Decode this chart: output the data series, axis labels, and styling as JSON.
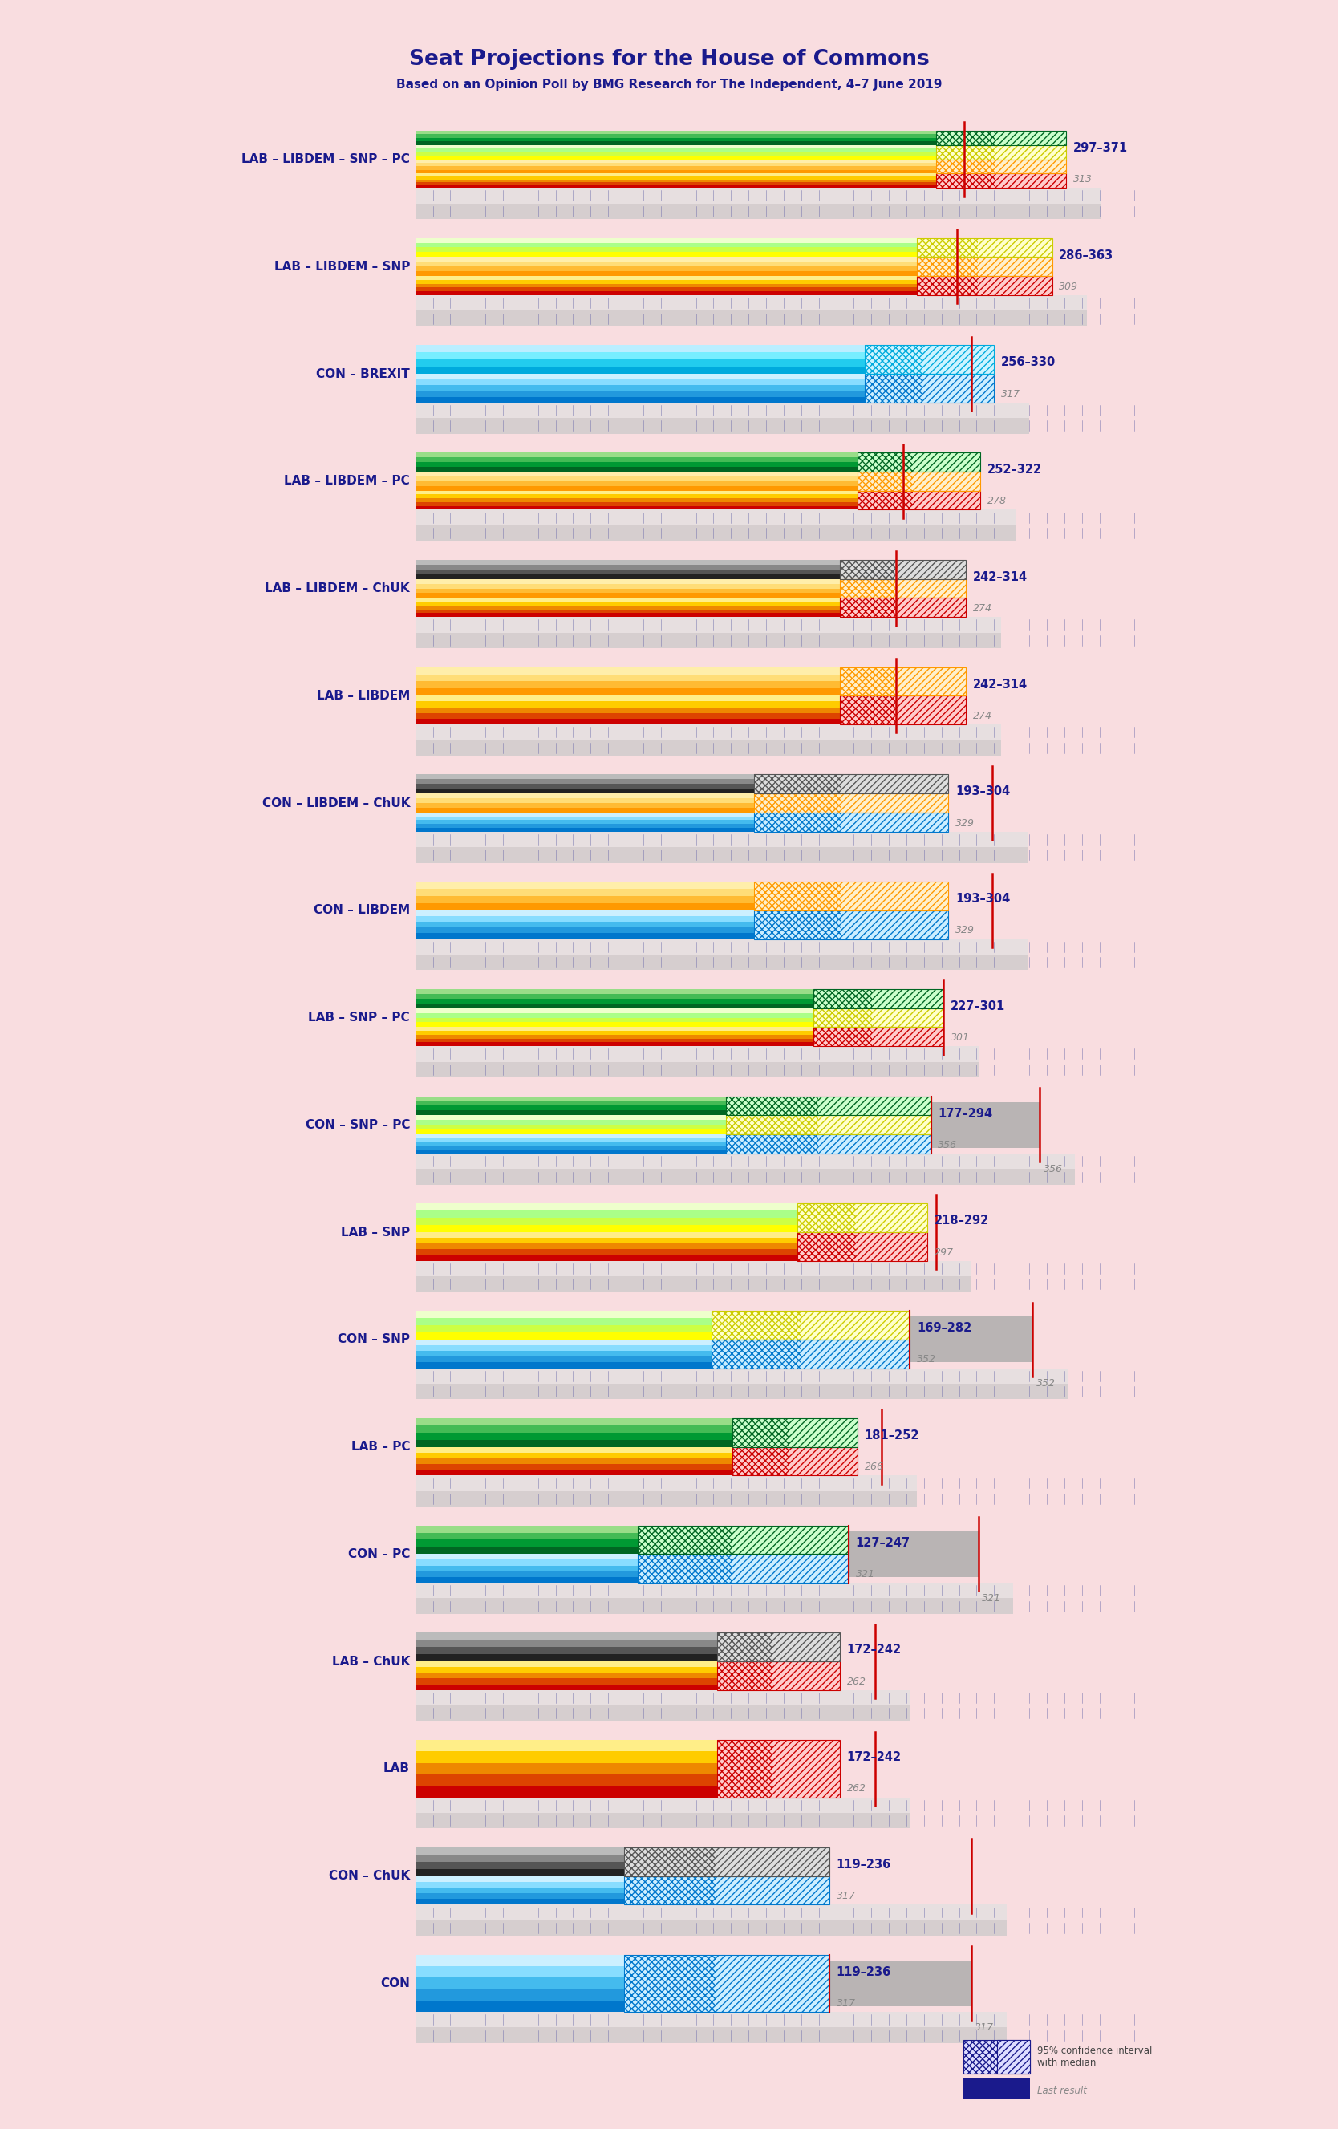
{
  "title": "Seat Projections for the House of Commons",
  "subtitle": "Based on an Opinion Poll by BMG Research for The Independent, 4–7 June 2019",
  "background_color": "#f9dde0",
  "title_color": "#1a1a8c",
  "subtitle_color": "#1a1a8c",
  "majority_line": 326,
  "xmin": 0,
  "xmax": 650,
  "coalitions": [
    {
      "name": "LAB – LIBDEM – SNP – PC",
      "ci_low": 297,
      "ci_high": 371,
      "median": 313,
      "last_result": null,
      "parties": [
        "LAB",
        "LIBDEM",
        "SNP",
        "PC"
      ]
    },
    {
      "name": "LAB – LIBDEM – SNP",
      "ci_low": 286,
      "ci_high": 363,
      "median": 309,
      "last_result": null,
      "parties": [
        "LAB",
        "LIBDEM",
        "SNP"
      ]
    },
    {
      "name": "CON – BREXIT",
      "ci_low": 256,
      "ci_high": 330,
      "median": 317,
      "last_result": null,
      "parties": [
        "CON",
        "BREXIT"
      ]
    },
    {
      "name": "LAB – LIBDEM – PC",
      "ci_low": 252,
      "ci_high": 322,
      "median": 278,
      "last_result": null,
      "parties": [
        "LAB",
        "LIBDEM",
        "PC"
      ]
    },
    {
      "name": "LAB – LIBDEM – ChUK",
      "ci_low": 242,
      "ci_high": 314,
      "median": 274,
      "last_result": null,
      "parties": [
        "LAB",
        "LIBDEM",
        "CHUK"
      ]
    },
    {
      "name": "LAB – LIBDEM",
      "ci_low": 242,
      "ci_high": 314,
      "median": 274,
      "last_result": null,
      "parties": [
        "LAB",
        "LIBDEM"
      ]
    },
    {
      "name": "CON – LIBDEM – ChUK",
      "ci_low": 193,
      "ci_high": 304,
      "median": 329,
      "last_result": null,
      "parties": [
        "CON",
        "LIBDEM",
        "CHUK"
      ]
    },
    {
      "name": "CON – LIBDEM",
      "ci_low": 193,
      "ci_high": 304,
      "median": 329,
      "last_result": null,
      "parties": [
        "CON",
        "LIBDEM"
      ]
    },
    {
      "name": "LAB – SNP – PC",
      "ci_low": 227,
      "ci_high": 301,
      "median": 301,
      "last_result": null,
      "parties": [
        "LAB",
        "SNP",
        "PC"
      ]
    },
    {
      "name": "CON – SNP – PC",
      "ci_low": 177,
      "ci_high": 294,
      "median": 356,
      "last_result": 356,
      "parties": [
        "CON",
        "SNP",
        "PC"
      ]
    },
    {
      "name": "LAB – SNP",
      "ci_low": 218,
      "ci_high": 292,
      "median": 297,
      "last_result": null,
      "parties": [
        "LAB",
        "SNP"
      ]
    },
    {
      "name": "CON – SNP",
      "ci_low": 169,
      "ci_high": 282,
      "median": 352,
      "last_result": 352,
      "parties": [
        "CON",
        "SNP"
      ]
    },
    {
      "name": "LAB – PC",
      "ci_low": 181,
      "ci_high": 252,
      "median": 266,
      "last_result": null,
      "parties": [
        "LAB",
        "PC"
      ]
    },
    {
      "name": "CON – PC",
      "ci_low": 127,
      "ci_high": 247,
      "median": 321,
      "last_result": 321,
      "parties": [
        "CON",
        "PC"
      ]
    },
    {
      "name": "LAB – ChUK",
      "ci_low": 172,
      "ci_high": 242,
      "median": 262,
      "last_result": null,
      "parties": [
        "LAB",
        "CHUK"
      ]
    },
    {
      "name": "LAB",
      "ci_low": 172,
      "ci_high": 242,
      "median": 262,
      "last_result": null,
      "parties": [
        "LAB"
      ]
    },
    {
      "name": "CON – ChUK",
      "ci_low": 119,
      "ci_high": 236,
      "median": 317,
      "last_result": null,
      "parties": [
        "CON",
        "CHUK"
      ]
    },
    {
      "name": "CON",
      "ci_low": 119,
      "ci_high": 236,
      "median": 317,
      "last_result": 317,
      "parties": [
        "CON"
      ]
    }
  ],
  "party_stripe_colors": {
    "LAB": [
      "#cc0000",
      "#dd4400",
      "#ee8800",
      "#ffcc00",
      "#ffee88"
    ],
    "CON": [
      "#0077cc",
      "#2299dd",
      "#44bbee",
      "#88ddff",
      "#ccf0ff"
    ],
    "LIBDEM": [
      "#ff9900",
      "#ffbb33",
      "#ffdd77",
      "#ffeeaa"
    ],
    "SNP": [
      "#ffff00",
      "#ccff44",
      "#aaff88",
      "#eeffcc"
    ],
    "PC": [
      "#006622",
      "#009933",
      "#44bb55",
      "#99dd88"
    ],
    "BREXIT": [
      "#00aadd",
      "#22ccee",
      "#77eeff",
      "#bbeeff"
    ],
    "CHUK": [
      "#222222",
      "#555555",
      "#888888",
      "#bbbbbb"
    ]
  },
  "party_hatch_colors": {
    "LAB": "#cc0000",
    "CON": "#0077cc",
    "LIBDEM": "#ff9900",
    "SNP": "#cccc00",
    "PC": "#006622",
    "BREXIT": "#00aadd",
    "CHUK": "#555555"
  },
  "party_hatch_bg": {
    "LAB": "#ffcccc",
    "CON": "#cceeFF",
    "LIBDEM": "#fff0cc",
    "SNP": "#ffffcc",
    "PC": "#ccffcc",
    "BREXIT": "#ccf4ff",
    "CHUK": "#dddddd"
  },
  "legend_ci_color": "#1a1a8c",
  "legend_last_color": "#1a1a8c"
}
